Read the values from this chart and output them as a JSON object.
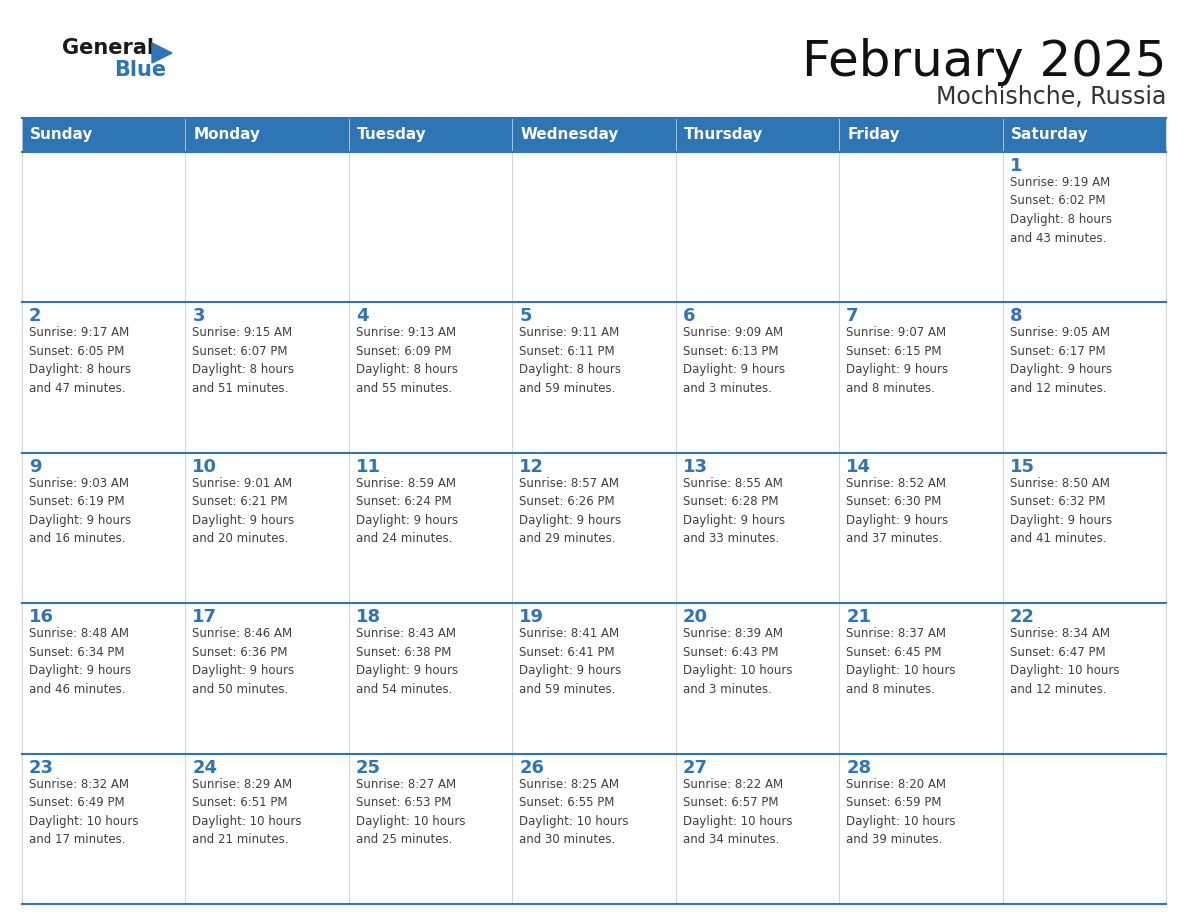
{
  "title": "February 2025",
  "subtitle": "Mochishche, Russia",
  "header_color": "#2e75b6",
  "header_text_color": "#ffffff",
  "cell_bg_color": "#f5f5f5",
  "day_number_color": "#2e75b6",
  "text_color": "#404040",
  "line_color": "#2e75b6",
  "days_of_week": [
    "Sunday",
    "Monday",
    "Tuesday",
    "Wednesday",
    "Thursday",
    "Friday",
    "Saturday"
  ],
  "weeks": [
    [
      {
        "day": null,
        "info": null
      },
      {
        "day": null,
        "info": null
      },
      {
        "day": null,
        "info": null
      },
      {
        "day": null,
        "info": null
      },
      {
        "day": null,
        "info": null
      },
      {
        "day": null,
        "info": null
      },
      {
        "day": 1,
        "info": "Sunrise: 9:19 AM\nSunset: 6:02 PM\nDaylight: 8 hours\nand 43 minutes."
      }
    ],
    [
      {
        "day": 2,
        "info": "Sunrise: 9:17 AM\nSunset: 6:05 PM\nDaylight: 8 hours\nand 47 minutes."
      },
      {
        "day": 3,
        "info": "Sunrise: 9:15 AM\nSunset: 6:07 PM\nDaylight: 8 hours\nand 51 minutes."
      },
      {
        "day": 4,
        "info": "Sunrise: 9:13 AM\nSunset: 6:09 PM\nDaylight: 8 hours\nand 55 minutes."
      },
      {
        "day": 5,
        "info": "Sunrise: 9:11 AM\nSunset: 6:11 PM\nDaylight: 8 hours\nand 59 minutes."
      },
      {
        "day": 6,
        "info": "Sunrise: 9:09 AM\nSunset: 6:13 PM\nDaylight: 9 hours\nand 3 minutes."
      },
      {
        "day": 7,
        "info": "Sunrise: 9:07 AM\nSunset: 6:15 PM\nDaylight: 9 hours\nand 8 minutes."
      },
      {
        "day": 8,
        "info": "Sunrise: 9:05 AM\nSunset: 6:17 PM\nDaylight: 9 hours\nand 12 minutes."
      }
    ],
    [
      {
        "day": 9,
        "info": "Sunrise: 9:03 AM\nSunset: 6:19 PM\nDaylight: 9 hours\nand 16 minutes."
      },
      {
        "day": 10,
        "info": "Sunrise: 9:01 AM\nSunset: 6:21 PM\nDaylight: 9 hours\nand 20 minutes."
      },
      {
        "day": 11,
        "info": "Sunrise: 8:59 AM\nSunset: 6:24 PM\nDaylight: 9 hours\nand 24 minutes."
      },
      {
        "day": 12,
        "info": "Sunrise: 8:57 AM\nSunset: 6:26 PM\nDaylight: 9 hours\nand 29 minutes."
      },
      {
        "day": 13,
        "info": "Sunrise: 8:55 AM\nSunset: 6:28 PM\nDaylight: 9 hours\nand 33 minutes."
      },
      {
        "day": 14,
        "info": "Sunrise: 8:52 AM\nSunset: 6:30 PM\nDaylight: 9 hours\nand 37 minutes."
      },
      {
        "day": 15,
        "info": "Sunrise: 8:50 AM\nSunset: 6:32 PM\nDaylight: 9 hours\nand 41 minutes."
      }
    ],
    [
      {
        "day": 16,
        "info": "Sunrise: 8:48 AM\nSunset: 6:34 PM\nDaylight: 9 hours\nand 46 minutes."
      },
      {
        "day": 17,
        "info": "Sunrise: 8:46 AM\nSunset: 6:36 PM\nDaylight: 9 hours\nand 50 minutes."
      },
      {
        "day": 18,
        "info": "Sunrise: 8:43 AM\nSunset: 6:38 PM\nDaylight: 9 hours\nand 54 minutes."
      },
      {
        "day": 19,
        "info": "Sunrise: 8:41 AM\nSunset: 6:41 PM\nDaylight: 9 hours\nand 59 minutes."
      },
      {
        "day": 20,
        "info": "Sunrise: 8:39 AM\nSunset: 6:43 PM\nDaylight: 10 hours\nand 3 minutes."
      },
      {
        "day": 21,
        "info": "Sunrise: 8:37 AM\nSunset: 6:45 PM\nDaylight: 10 hours\nand 8 minutes."
      },
      {
        "day": 22,
        "info": "Sunrise: 8:34 AM\nSunset: 6:47 PM\nDaylight: 10 hours\nand 12 minutes."
      }
    ],
    [
      {
        "day": 23,
        "info": "Sunrise: 8:32 AM\nSunset: 6:49 PM\nDaylight: 10 hours\nand 17 minutes."
      },
      {
        "day": 24,
        "info": "Sunrise: 8:29 AM\nSunset: 6:51 PM\nDaylight: 10 hours\nand 21 minutes."
      },
      {
        "day": 25,
        "info": "Sunrise: 8:27 AM\nSunset: 6:53 PM\nDaylight: 10 hours\nand 25 minutes."
      },
      {
        "day": 26,
        "info": "Sunrise: 8:25 AM\nSunset: 6:55 PM\nDaylight: 10 hours\nand 30 minutes."
      },
      {
        "day": 27,
        "info": "Sunrise: 8:22 AM\nSunset: 6:57 PM\nDaylight: 10 hours\nand 34 minutes."
      },
      {
        "day": 28,
        "info": "Sunrise: 8:20 AM\nSunset: 6:59 PM\nDaylight: 10 hours\nand 39 minutes."
      },
      {
        "day": null,
        "info": null
      }
    ]
  ],
  "logo_color_general": "#1a1a1a",
  "logo_color_blue": "#2e75b6",
  "logo_triangle_color": "#2e75b6",
  "fig_width": 11.88,
  "fig_height": 9.18,
  "dpi": 100
}
